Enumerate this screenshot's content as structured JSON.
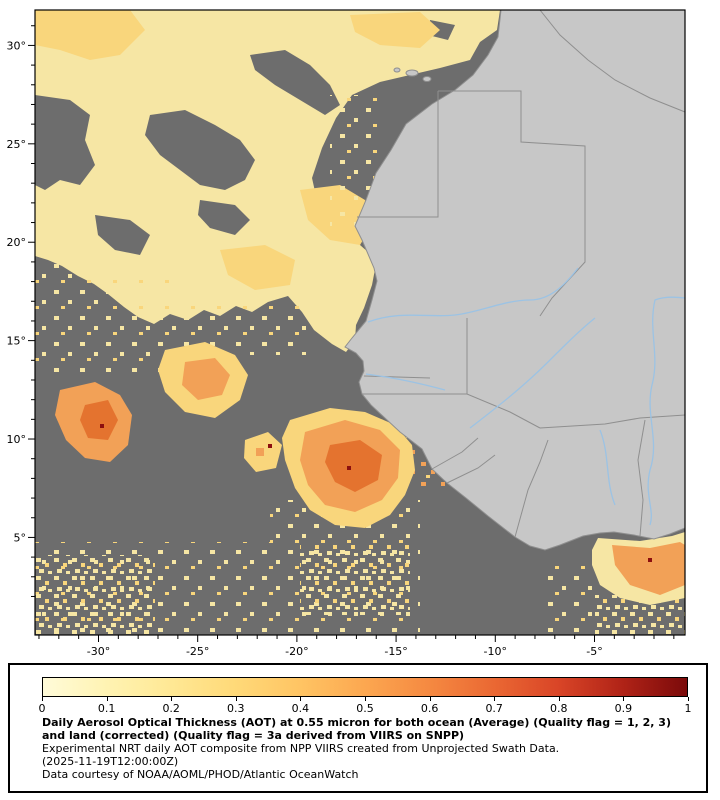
{
  "map": {
    "x_axis": {
      "ticks": [
        {
          "label": "-30°",
          "value": -30
        },
        {
          "label": "-25°",
          "value": -25
        },
        {
          "label": "-20°",
          "value": -20
        },
        {
          "label": "-15°",
          "value": -15
        },
        {
          "label": "-10°",
          "value": -10
        },
        {
          "label": "-5°",
          "value": -5
        }
      ]
    },
    "y_axis": {
      "ticks": [
        {
          "label": "30°",
          "value": 30
        },
        {
          "label": "25°",
          "value": 25
        },
        {
          "label": "20°",
          "value": 20
        },
        {
          "label": "15°",
          "value": 15
        },
        {
          "label": "10°",
          "value": 10
        },
        {
          "label": "5°",
          "value": 5
        }
      ]
    }
  },
  "legend": {
    "tick_labels": [
      "0",
      "0.1",
      "0.2",
      "0.3",
      "0.4",
      "0.5",
      "0.6",
      "0.7",
      "0.8",
      "0.9",
      "1"
    ],
    "colorbar_stops": [
      "#fffbd9",
      "#fff3b2",
      "#ffe894",
      "#ffd978",
      "#ffc463",
      "#fca750",
      "#f58941",
      "#ea6833",
      "#d94527",
      "#b02317",
      "#7b0a0a"
    ],
    "value_range": [
      0,
      1
    ],
    "title": "Daily Aerosol Optical Thickness (AOT) at 0.55 micron for both ocean (Average) (Quality flag = 1, 2, 3) and land (corrected) (Quality flag = 3a derived from VIIRS on SNPP)",
    "line2": "Experimental NRT daily AOT composite from NPP VIIRS created from Unprojected Swath Data.",
    "timestamp": "(2025-11-19T12:00:00Z)",
    "credit": "Data courtesy of NOAA/AOML/PHOD/Atlantic OceanWatch"
  },
  "colors": {
    "ocean_nodata": "#6d6d6d",
    "land": "#c7c7c7",
    "country_border": "#8f8f8f",
    "river": "#9cc3e4",
    "aot_low": "#f6e6a4",
    "aot_mid": "#f9d67c",
    "aot_high": "#f2a157",
    "aot_higher": "#e4732f",
    "aot_max": "#8c0f0f"
  }
}
